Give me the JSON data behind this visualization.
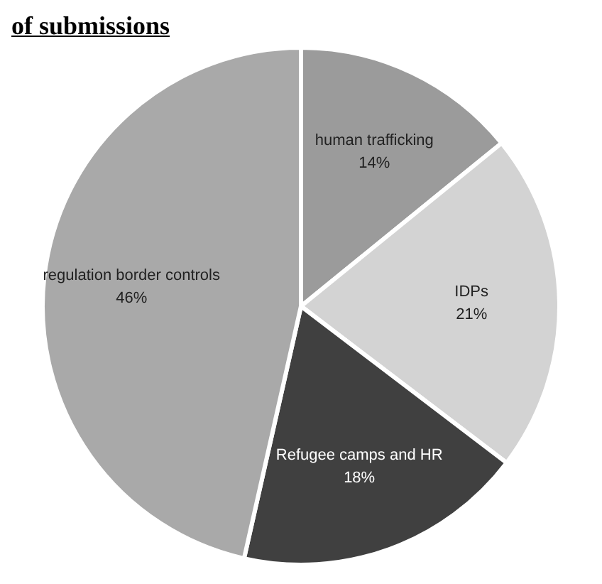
{
  "chart_data": {
    "type": "pie",
    "title": "of submissions",
    "categories": [
      "human trafficking",
      "IDPs",
      "Refugee camps and HR",
      "regulation border controls"
    ],
    "values": [
      14,
      21,
      18,
      46
    ],
    "colors": [
      "#9b9b9b",
      "#d3d3d3",
      "#404040",
      "#a9a9a9"
    ],
    "value_labels": [
      "14%",
      "21%",
      "18%",
      "46%"
    ],
    "legend": false
  }
}
